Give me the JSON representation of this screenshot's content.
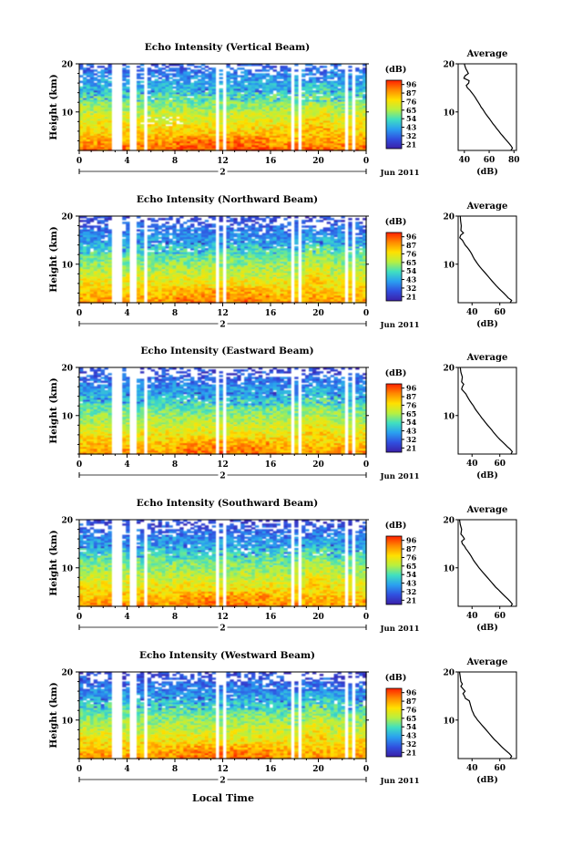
{
  "figure": {
    "xlabel": "Local Time",
    "date_label": "Jun 2011",
    "day_marker": "2",
    "colorbar_unit": "(dB)",
    "average_title": "Average",
    "average_xlabel": "(dB)",
    "height_label": "Height (km)"
  },
  "colorbar": {
    "ticks": [
      "96",
      "87",
      "76",
      "65",
      "54",
      "43",
      "32",
      "21"
    ],
    "stops": [
      "#ff2000",
      "#ff8a00",
      "#ffe000",
      "#b8f040",
      "#40e0c0",
      "#2aa0f0",
      "#3050e0",
      "#3a20a8"
    ]
  },
  "chart_data": [
    {
      "type": "heatmap",
      "title": "Echo Intensity (Vertical Beam)",
      "xticks": [
        "0",
        "4",
        "8",
        "12",
        "16",
        "20",
        "0"
      ],
      "yticks": [
        "20",
        "10"
      ],
      "x_range_hours": [
        0,
        24
      ],
      "y_range_km": [
        2,
        20
      ],
      "value_range_db": [
        21,
        96
      ],
      "average": {
        "title": "Average",
        "xticks": [
          "40",
          "60",
          "80"
        ],
        "xlim": [
          35,
          82
        ],
        "yticks": [
          "20",
          "10"
        ],
        "ylim": [
          2,
          20
        ],
        "profile": [
          [
            40.0,
            20.0
          ],
          [
            40.5,
            19.5
          ],
          [
            41.2,
            19.0
          ],
          [
            42.3,
            18.5
          ],
          [
            43.2,
            18.0
          ],
          [
            40.5,
            17.5
          ],
          [
            39.6,
            17.0
          ],
          [
            43.8,
            16.5
          ],
          [
            43.5,
            16.0
          ],
          [
            41.5,
            15.5
          ],
          [
            42.5,
            15.0
          ],
          [
            44.5,
            14.5
          ],
          [
            46.0,
            14.0
          ],
          [
            47.5,
            13.5
          ],
          [
            48.8,
            13.0
          ],
          [
            50.0,
            12.5
          ],
          [
            51.2,
            12.0
          ],
          [
            52.5,
            11.5
          ],
          [
            53.5,
            11.0
          ],
          [
            55.0,
            10.5
          ],
          [
            56.2,
            10.0
          ],
          [
            57.5,
            9.5
          ],
          [
            59.0,
            9.0
          ],
          [
            60.5,
            8.5
          ],
          [
            61.8,
            8.0
          ],
          [
            63.2,
            7.5
          ],
          [
            64.8,
            7.0
          ],
          [
            66.2,
            6.5
          ],
          [
            67.8,
            6.0
          ],
          [
            69.2,
            5.5
          ],
          [
            71.0,
            5.0
          ],
          [
            72.5,
            4.5
          ],
          [
            74.2,
            4.0
          ],
          [
            76.0,
            3.5
          ],
          [
            77.5,
            3.0
          ],
          [
            78.8,
            2.5
          ],
          [
            77.5,
            2.0
          ]
        ]
      }
    },
    {
      "type": "heatmap",
      "title": "Echo Intensity (Northward Beam)",
      "xticks": [
        "0",
        "4",
        "8",
        "12",
        "16",
        "20",
        "0"
      ],
      "yticks": [
        "20",
        "10"
      ],
      "x_range_hours": [
        0,
        24
      ],
      "y_range_km": [
        2,
        20
      ],
      "value_range_db": [
        21,
        96
      ],
      "average": {
        "title": "Average",
        "xticks": [
          "40",
          "60"
        ],
        "xlim": [
          30,
          72
        ],
        "yticks": [
          "20",
          "10"
        ],
        "ylim": [
          2,
          20
        ],
        "profile": [
          [
            31.5,
            20.0
          ],
          [
            31.8,
            19.0
          ],
          [
            32.2,
            18.0
          ],
          [
            32.0,
            17.0
          ],
          [
            33.8,
            16.5
          ],
          [
            31.8,
            16.0
          ],
          [
            31.2,
            15.5
          ],
          [
            33.0,
            15.0
          ],
          [
            34.0,
            14.5
          ],
          [
            35.0,
            14.0
          ],
          [
            36.5,
            13.5
          ],
          [
            37.8,
            13.0
          ],
          [
            39.0,
            12.5
          ],
          [
            40.0,
            12.0
          ],
          [
            40.8,
            11.5
          ],
          [
            41.8,
            11.0
          ],
          [
            43.0,
            10.5
          ],
          [
            44.2,
            10.0
          ],
          [
            45.5,
            9.5
          ],
          [
            47.0,
            9.0
          ],
          [
            48.5,
            8.5
          ],
          [
            50.0,
            8.0
          ],
          [
            51.5,
            7.5
          ],
          [
            53.0,
            7.0
          ],
          [
            54.5,
            6.5
          ],
          [
            56.0,
            6.0
          ],
          [
            57.5,
            5.5
          ],
          [
            59.2,
            5.0
          ],
          [
            61.0,
            4.5
          ],
          [
            62.8,
            4.0
          ],
          [
            64.5,
            3.5
          ],
          [
            66.0,
            3.0
          ],
          [
            68.5,
            2.5
          ],
          [
            67.5,
            2.0
          ]
        ]
      }
    },
    {
      "type": "heatmap",
      "title": "Echo Intensity (Eastward Beam)",
      "xticks": [
        "0",
        "4",
        "8",
        "12",
        "16",
        "20",
        "0"
      ],
      "yticks": [
        "20",
        "10"
      ],
      "x_range_hours": [
        0,
        24
      ],
      "y_range_km": [
        2,
        20
      ],
      "value_range_db": [
        21,
        96
      ],
      "average": {
        "title": "Average",
        "xticks": [
          "40",
          "60"
        ],
        "xlim": [
          30,
          72
        ],
        "yticks": [
          "20",
          "10"
        ],
        "ylim": [
          2,
          20
        ],
        "profile": [
          [
            31.5,
            20.0
          ],
          [
            32.0,
            19.0
          ],
          [
            33.0,
            18.0
          ],
          [
            32.5,
            17.0
          ],
          [
            34.0,
            16.5
          ],
          [
            33.0,
            16.0
          ],
          [
            32.5,
            15.5
          ],
          [
            34.0,
            15.0
          ],
          [
            35.5,
            14.5
          ],
          [
            36.5,
            14.0
          ],
          [
            37.5,
            13.5
          ],
          [
            38.5,
            13.0
          ],
          [
            39.8,
            12.5
          ],
          [
            41.0,
            12.0
          ],
          [
            42.0,
            11.5
          ],
          [
            43.2,
            11.0
          ],
          [
            44.5,
            10.5
          ],
          [
            45.8,
            10.0
          ],
          [
            47.0,
            9.5
          ],
          [
            48.5,
            9.0
          ],
          [
            49.8,
            8.5
          ],
          [
            51.2,
            8.0
          ],
          [
            52.8,
            7.5
          ],
          [
            54.2,
            7.0
          ],
          [
            55.5,
            6.5
          ],
          [
            57.0,
            6.0
          ],
          [
            58.5,
            5.5
          ],
          [
            60.2,
            5.0
          ],
          [
            62.0,
            4.5
          ],
          [
            63.8,
            4.0
          ],
          [
            65.5,
            3.5
          ],
          [
            67.5,
            3.0
          ],
          [
            69.0,
            2.5
          ],
          [
            68.0,
            2.0
          ]
        ]
      }
    },
    {
      "type": "heatmap",
      "title": "Echo Intensity (Southward Beam)",
      "xticks": [
        "0",
        "4",
        "8",
        "12",
        "16",
        "20",
        "0"
      ],
      "yticks": [
        "20",
        "10"
      ],
      "x_range_hours": [
        0,
        24
      ],
      "y_range_km": [
        2,
        20
      ],
      "value_range_db": [
        21,
        96
      ],
      "average": {
        "title": "Average",
        "xticks": [
          "40",
          "60"
        ],
        "xlim": [
          30,
          72
        ],
        "yticks": [
          "20",
          "10"
        ],
        "ylim": [
          2,
          20
        ],
        "profile": [
          [
            31.0,
            20.0
          ],
          [
            31.5,
            19.0
          ],
          [
            32.5,
            18.0
          ],
          [
            32.0,
            17.0
          ],
          [
            33.5,
            16.5
          ],
          [
            34.5,
            16.0
          ],
          [
            32.5,
            15.5
          ],
          [
            33.0,
            15.0
          ],
          [
            34.5,
            14.5
          ],
          [
            35.5,
            14.0
          ],
          [
            36.8,
            13.5
          ],
          [
            38.0,
            13.0
          ],
          [
            39.2,
            12.5
          ],
          [
            40.2,
            12.0
          ],
          [
            41.2,
            11.5
          ],
          [
            42.5,
            11.0
          ],
          [
            43.8,
            10.5
          ],
          [
            45.0,
            10.0
          ],
          [
            46.5,
            9.5
          ],
          [
            48.0,
            9.0
          ],
          [
            49.5,
            8.5
          ],
          [
            51.0,
            8.0
          ],
          [
            52.5,
            7.5
          ],
          [
            54.0,
            7.0
          ],
          [
            55.5,
            6.5
          ],
          [
            57.0,
            6.0
          ],
          [
            58.8,
            5.5
          ],
          [
            60.5,
            5.0
          ],
          [
            62.2,
            4.5
          ],
          [
            64.0,
            4.0
          ],
          [
            65.8,
            3.5
          ],
          [
            67.5,
            3.0
          ],
          [
            69.0,
            2.5
          ],
          [
            68.0,
            2.0
          ]
        ]
      }
    },
    {
      "type": "heatmap",
      "title": "Echo Intensity (Westward Beam)",
      "xticks": [
        "0",
        "4",
        "8",
        "12",
        "16",
        "20",
        "0"
      ],
      "yticks": [
        "20",
        "10"
      ],
      "x_range_hours": [
        0,
        24
      ],
      "y_range_km": [
        2,
        20
      ],
      "value_range_db": [
        21,
        96
      ],
      "average": {
        "title": "Average",
        "xticks": [
          "40",
          "60"
        ],
        "xlim": [
          30,
          72
        ],
        "yticks": [
          "20",
          "10"
        ],
        "ylim": [
          2,
          20
        ],
        "profile": [
          [
            31.0,
            20.0
          ],
          [
            31.5,
            19.0
          ],
          [
            32.0,
            18.0
          ],
          [
            33.0,
            17.5
          ],
          [
            32.0,
            17.0
          ],
          [
            33.5,
            16.5
          ],
          [
            35.0,
            16.0
          ],
          [
            33.5,
            15.5
          ],
          [
            34.5,
            15.0
          ],
          [
            35.2,
            14.5
          ],
          [
            38.0,
            14.0
          ],
          [
            38.5,
            13.5
          ],
          [
            39.0,
            13.0
          ],
          [
            39.5,
            12.5
          ],
          [
            40.0,
            12.0
          ],
          [
            40.8,
            11.5
          ],
          [
            41.5,
            11.0
          ],
          [
            42.8,
            10.5
          ],
          [
            44.0,
            10.0
          ],
          [
            45.5,
            9.5
          ],
          [
            47.0,
            9.0
          ],
          [
            48.5,
            8.5
          ],
          [
            50.0,
            8.0
          ],
          [
            51.5,
            7.5
          ],
          [
            53.0,
            7.0
          ],
          [
            54.5,
            6.5
          ],
          [
            56.0,
            6.0
          ],
          [
            57.8,
            5.5
          ],
          [
            59.5,
            5.0
          ],
          [
            61.2,
            4.5
          ],
          [
            63.0,
            4.0
          ],
          [
            65.0,
            3.5
          ],
          [
            67.0,
            3.0
          ],
          [
            68.5,
            2.5
          ],
          [
            67.5,
            2.0
          ]
        ]
      }
    }
  ]
}
